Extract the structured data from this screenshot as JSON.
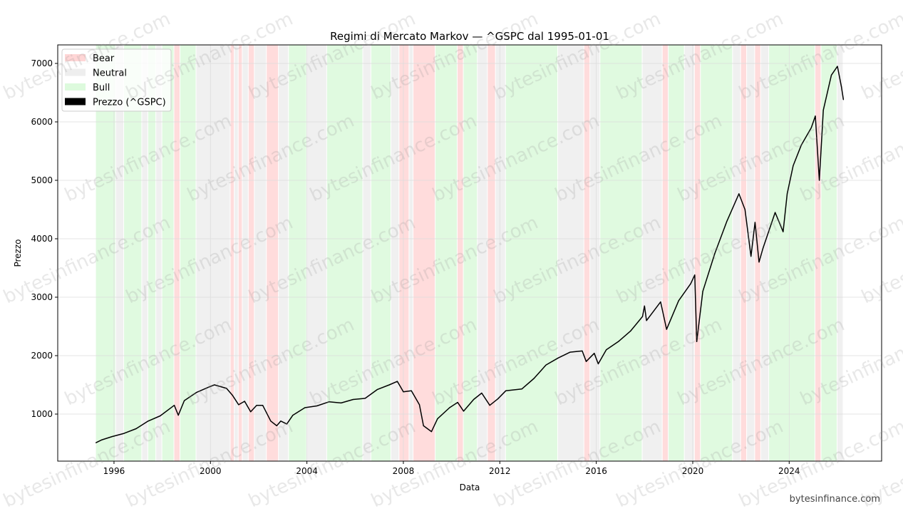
{
  "chart_data": {
    "type": "line",
    "title": "Regimi di Mercato Markov — ^GSPC dal 1995-01-01",
    "xlabel": "Data",
    "ylabel": "Prezzo",
    "xlim": [
      "1993-09",
      "2027-11"
    ],
    "ylim": [
      195,
      7317
    ],
    "x_ticks": [
      "1996",
      "2000",
      "2004",
      "2008",
      "2012",
      "2016",
      "2020",
      "2024"
    ],
    "y_ticks": [
      1000,
      2000,
      3000,
      4000,
      5000,
      6000,
      7000
    ],
    "grid": true,
    "legend_placement": "upper-left",
    "legend": [
      {
        "label": "Bear",
        "color": "#ffd6d6"
      },
      {
        "label": "Neutral",
        "color": "#eeeeee"
      },
      {
        "label": "Bull",
        "color": "#ddfadd"
      },
      {
        "label": "Prezzo (^GSPC)",
        "color": "#000000"
      }
    ],
    "regime_colors": {
      "Bear": "#ffdcdc",
      "Neutral": "#f0f0f0",
      "Bull": "#e0fae0"
    },
    "regimes": [
      [
        "1995-04",
        "1996-02",
        "Bull"
      ],
      [
        "1996-02",
        "1996-06",
        "Neutral"
      ],
      [
        "1996-06",
        "1997-03",
        "Bull"
      ],
      [
        "1997-03",
        "1997-06",
        "Neutral"
      ],
      [
        "1997-06",
        "1997-10",
        "Bull"
      ],
      [
        "1997-10",
        "1998-01",
        "Neutral"
      ],
      [
        "1998-01",
        "1998-07",
        "Bull"
      ],
      [
        "1998-07",
        "1998-10",
        "Bear"
      ],
      [
        "1998-10",
        "1999-06",
        "Bull"
      ],
      [
        "1999-06",
        "2000-11",
        "Neutral"
      ],
      [
        "2000-11",
        "2001-01",
        "Bear"
      ],
      [
        "2001-01",
        "2001-03",
        "Neutral"
      ],
      [
        "2001-03",
        "2001-05",
        "Bear"
      ],
      [
        "2001-05",
        "2001-08",
        "Neutral"
      ],
      [
        "2001-08",
        "2001-11",
        "Bear"
      ],
      [
        "2001-11",
        "2002-05",
        "Neutral"
      ],
      [
        "2002-05",
        "2002-11",
        "Bear"
      ],
      [
        "2002-11",
        "2003-04",
        "Neutral"
      ],
      [
        "2003-04",
        "2004-01",
        "Bull"
      ],
      [
        "2004-01",
        "2004-11",
        "Neutral"
      ],
      [
        "2004-11",
        "2006-05",
        "Bull"
      ],
      [
        "2006-05",
        "2006-09",
        "Neutral"
      ],
      [
        "2006-09",
        "2007-07",
        "Bull"
      ],
      [
        "2007-07",
        "2007-11",
        "Neutral"
      ],
      [
        "2007-11",
        "2008-04",
        "Bear"
      ],
      [
        "2008-04",
        "2008-06",
        "Neutral"
      ],
      [
        "2008-06",
        "2009-05",
        "Bear"
      ],
      [
        "2009-05",
        "2010-04",
        "Bull"
      ],
      [
        "2010-04",
        "2010-07",
        "Bear"
      ],
      [
        "2010-07",
        "2011-02",
        "Bull"
      ],
      [
        "2011-02",
        "2011-07",
        "Neutral"
      ],
      [
        "2011-07",
        "2011-11",
        "Bear"
      ],
      [
        "2011-11",
        "2012-04",
        "Neutral"
      ],
      [
        "2012-04",
        "2014-06",
        "Bull"
      ],
      [
        "2014-06",
        "2015-07",
        "Neutral"
      ],
      [
        "2015-07",
        "2015-10",
        "Bear"
      ],
      [
        "2015-10",
        "2016-03",
        "Neutral"
      ],
      [
        "2016-03",
        "2017-12",
        "Bull"
      ],
      [
        "2017-12",
        "2018-10",
        "Neutral"
      ],
      [
        "2018-10",
        "2019-01",
        "Bear"
      ],
      [
        "2019-01",
        "2019-09",
        "Bull"
      ],
      [
        "2019-09",
        "2020-02",
        "Neutral"
      ],
      [
        "2020-02",
        "2020-05",
        "Bear"
      ],
      [
        "2020-05",
        "2021-09",
        "Bull"
      ],
      [
        "2021-09",
        "2022-01",
        "Neutral"
      ],
      [
        "2022-01",
        "2022-04",
        "Bear"
      ],
      [
        "2022-04",
        "2022-08",
        "Neutral"
      ],
      [
        "2022-08",
        "2022-11",
        "Bear"
      ],
      [
        "2022-11",
        "2023-03",
        "Neutral"
      ],
      [
        "2023-03",
        "2025-02",
        "Bull"
      ],
      [
        "2025-02",
        "2025-05",
        "Bear"
      ],
      [
        "2025-05",
        "2026-01",
        "Bull"
      ],
      [
        "2026-01",
        "2026-04",
        "Neutral"
      ]
    ],
    "series": [
      {
        "name": "Prezzo (^GSPC)",
        "color": "#000000",
        "points": [
          [
            "1995-04",
            510
          ],
          [
            "1995-07",
            560
          ],
          [
            "1995-12",
            615
          ],
          [
            "1996-06",
            670
          ],
          [
            "1996-12",
            750
          ],
          [
            "1997-06",
            880
          ],
          [
            "1997-12",
            970
          ],
          [
            "1998-07",
            1150
          ],
          [
            "1998-09",
            980
          ],
          [
            "1998-12",
            1230
          ],
          [
            "1999-06",
            1370
          ],
          [
            "1999-12",
            1460
          ],
          [
            "2000-03",
            1500
          ],
          [
            "2000-09",
            1440
          ],
          [
            "2000-12",
            1320
          ],
          [
            "2001-03",
            1160
          ],
          [
            "2001-06",
            1220
          ],
          [
            "2001-09",
            1040
          ],
          [
            "2001-12",
            1150
          ],
          [
            "2002-03",
            1150
          ],
          [
            "2002-07",
            880
          ],
          [
            "2002-10",
            800
          ],
          [
            "2002-12",
            880
          ],
          [
            "2003-03",
            830
          ],
          [
            "2003-06",
            980
          ],
          [
            "2003-12",
            1110
          ],
          [
            "2004-06",
            1140
          ],
          [
            "2004-12",
            1210
          ],
          [
            "2005-06",
            1190
          ],
          [
            "2005-12",
            1250
          ],
          [
            "2006-06",
            1270
          ],
          [
            "2006-12",
            1420
          ],
          [
            "2007-06",
            1500
          ],
          [
            "2007-10",
            1560
          ],
          [
            "2008-01",
            1380
          ],
          [
            "2008-05",
            1400
          ],
          [
            "2008-09",
            1160
          ],
          [
            "2008-11",
            800
          ],
          [
            "2009-03",
            700
          ],
          [
            "2009-06",
            920
          ],
          [
            "2009-12",
            1110
          ],
          [
            "2010-04",
            1200
          ],
          [
            "2010-07",
            1050
          ],
          [
            "2010-12",
            1250
          ],
          [
            "2011-04",
            1360
          ],
          [
            "2011-08",
            1150
          ],
          [
            "2011-12",
            1260
          ],
          [
            "2012-04",
            1400
          ],
          [
            "2012-12",
            1430
          ],
          [
            "2013-06",
            1610
          ],
          [
            "2013-12",
            1840
          ],
          [
            "2014-06",
            1960
          ],
          [
            "2014-12",
            2060
          ],
          [
            "2015-06",
            2080
          ],
          [
            "2015-08",
            1900
          ],
          [
            "2015-12",
            2040
          ],
          [
            "2016-02",
            1860
          ],
          [
            "2016-06",
            2100
          ],
          [
            "2016-12",
            2240
          ],
          [
            "2017-06",
            2420
          ],
          [
            "2017-12",
            2670
          ],
          [
            "2018-01",
            2850
          ],
          [
            "2018-02",
            2600
          ],
          [
            "2018-09",
            2920
          ],
          [
            "2018-12",
            2450
          ],
          [
            "2019-06",
            2940
          ],
          [
            "2019-12",
            3230
          ],
          [
            "2020-02",
            3380
          ],
          [
            "2020-03",
            2240
          ],
          [
            "2020-06",
            3100
          ],
          [
            "2020-12",
            3750
          ],
          [
            "2021-06",
            4300
          ],
          [
            "2021-12",
            4770
          ],
          [
            "2022-03",
            4500
          ],
          [
            "2022-06",
            3700
          ],
          [
            "2022-08",
            4280
          ],
          [
            "2022-10",
            3600
          ],
          [
            "2022-12",
            3840
          ],
          [
            "2023-06",
            4450
          ],
          [
            "2023-10",
            4120
          ],
          [
            "2023-12",
            4770
          ],
          [
            "2024-03",
            5250
          ],
          [
            "2024-07",
            5600
          ],
          [
            "2024-12",
            5900
          ],
          [
            "2025-02",
            6100
          ],
          [
            "2025-04",
            5000
          ],
          [
            "2025-06",
            6200
          ],
          [
            "2025-10",
            6800
          ],
          [
            "2026-01",
            6950
          ],
          [
            "2026-03",
            6600
          ],
          [
            "2026-04",
            6380
          ]
        ]
      }
    ]
  },
  "watermark": "bytesinfinance.com",
  "footer": "bytesinfinance.com"
}
